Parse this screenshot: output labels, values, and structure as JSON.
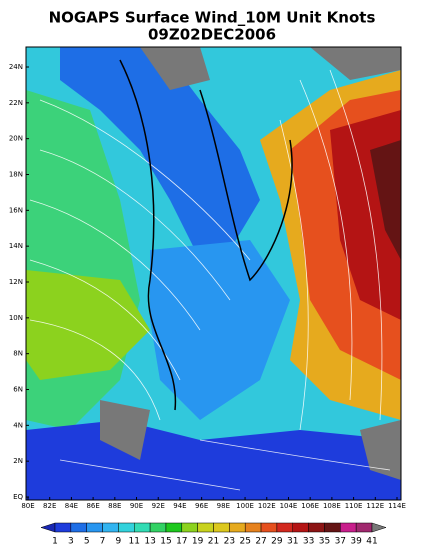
{
  "title": [
    "NOGAPS Surface Wind_10M Unit Knots",
    "09Z02DEC2006"
  ],
  "lat_ticks": [
    "EQ",
    "2N",
    "4N",
    "6N",
    "8N",
    "10N",
    "12N",
    "14N",
    "16N",
    "18N",
    "20N",
    "22N",
    "24N"
  ],
  "lon_ticks": [
    "80E",
    "82E",
    "84E",
    "86E",
    "88E",
    "90E",
    "92E",
    "94E",
    "96E",
    "98E",
    "100E",
    "102E",
    "104E",
    "106E",
    "108E",
    "110E",
    "112E",
    "114E"
  ],
  "colorbar": {
    "labels": [
      1,
      3,
      5,
      7,
      9,
      11,
      13,
      15,
      17,
      19,
      21,
      23,
      25,
      27,
      29,
      31,
      33,
      35,
      37,
      39,
      41
    ],
    "colors": [
      "#1a28b4",
      "#1e3cdc",
      "#1e6ee6",
      "#2896f0",
      "#32b4f0",
      "#32d2dc",
      "#32dcb4",
      "#32d264",
      "#1ec81e",
      "#8cd21e",
      "#c8d21e",
      "#dcc81e",
      "#e6aa1e",
      "#e6821e",
      "#e6501e",
      "#d2281e",
      "#b41414",
      "#8c1414",
      "#641414",
      "#c81e8c",
      "#a0286e",
      "#787878"
    ]
  }
}
